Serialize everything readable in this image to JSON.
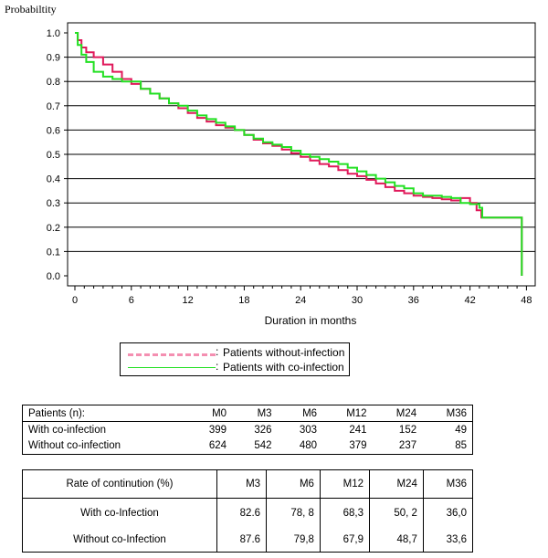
{
  "chart_data": {
    "type": "line",
    "step": true,
    "ylabel": "Probabiltity",
    "xlabel": "Duration in months",
    "xlim": [
      0,
      48
    ],
    "ylim": [
      0,
      1.0
    ],
    "xticks": [
      0,
      6,
      12,
      18,
      24,
      30,
      36,
      42,
      48
    ],
    "yticks": [
      0.0,
      0.1,
      0.2,
      0.3,
      0.4,
      0.5,
      0.6,
      0.7,
      0.8,
      0.9,
      1.0
    ],
    "grid": "horizontal",
    "legend_placement": "below-chart",
    "series": [
      {
        "name": "Patients without-infection",
        "color": "#e0185a",
        "points": [
          [
            0,
            1.0
          ],
          [
            0.3,
            0.97
          ],
          [
            0.7,
            0.94
          ],
          [
            1.2,
            0.92
          ],
          [
            2,
            0.9
          ],
          [
            3,
            0.87
          ],
          [
            4,
            0.84
          ],
          [
            5,
            0.81
          ],
          [
            6,
            0.79
          ],
          [
            7,
            0.77
          ],
          [
            8,
            0.75
          ],
          [
            9,
            0.73
          ],
          [
            10,
            0.71
          ],
          [
            11,
            0.69
          ],
          [
            12,
            0.67
          ],
          [
            13,
            0.65
          ],
          [
            14,
            0.635
          ],
          [
            15,
            0.62
          ],
          [
            16,
            0.61
          ],
          [
            17,
            0.6
          ],
          [
            18,
            0.58
          ],
          [
            19,
            0.56
          ],
          [
            20,
            0.545
          ],
          [
            21,
            0.535
          ],
          [
            22,
            0.52
          ],
          [
            23,
            0.505
          ],
          [
            24,
            0.49
          ],
          [
            25,
            0.475
          ],
          [
            26,
            0.46
          ],
          [
            27,
            0.45
          ],
          [
            28,
            0.435
          ],
          [
            29,
            0.42
          ],
          [
            30,
            0.41
          ],
          [
            31,
            0.395
          ],
          [
            32,
            0.38
          ],
          [
            33,
            0.365
          ],
          [
            34,
            0.35
          ],
          [
            35,
            0.34
          ],
          [
            36,
            0.33
          ],
          [
            37,
            0.325
          ],
          [
            38,
            0.32
          ],
          [
            39,
            0.315
          ],
          [
            40,
            0.31
          ],
          [
            41,
            0.32
          ],
          [
            42,
            0.3
          ],
          [
            42.7,
            0.27
          ],
          [
            43.2,
            0.24
          ],
          [
            47.5,
            0.24
          ],
          [
            47.5,
            0.0
          ]
        ]
      },
      {
        "name": "Patients with co-infection",
        "color": "#22e022",
        "points": [
          [
            0,
            1.0
          ],
          [
            0.3,
            0.95
          ],
          [
            0.7,
            0.91
          ],
          [
            1.2,
            0.88
          ],
          [
            2,
            0.84
          ],
          [
            3,
            0.82
          ],
          [
            4,
            0.81
          ],
          [
            5,
            0.8
          ],
          [
            6,
            0.8
          ],
          [
            7,
            0.77
          ],
          [
            8,
            0.75
          ],
          [
            9,
            0.73
          ],
          [
            10,
            0.71
          ],
          [
            11,
            0.7
          ],
          [
            12,
            0.68
          ],
          [
            13,
            0.66
          ],
          [
            14,
            0.645
          ],
          [
            15,
            0.63
          ],
          [
            16,
            0.615
          ],
          [
            17,
            0.6
          ],
          [
            18,
            0.58
          ],
          [
            19,
            0.565
          ],
          [
            20,
            0.55
          ],
          [
            21,
            0.54
          ],
          [
            22,
            0.53
          ],
          [
            23,
            0.515
          ],
          [
            24,
            0.5
          ],
          [
            25,
            0.49
          ],
          [
            26,
            0.48
          ],
          [
            27,
            0.47
          ],
          [
            28,
            0.46
          ],
          [
            29,
            0.445
          ],
          [
            30,
            0.43
          ],
          [
            31,
            0.415
          ],
          [
            32,
            0.4
          ],
          [
            33,
            0.385
          ],
          [
            34,
            0.37
          ],
          [
            35,
            0.36
          ],
          [
            36,
            0.34
          ],
          [
            37,
            0.33
          ],
          [
            38,
            0.33
          ],
          [
            39,
            0.325
          ],
          [
            40,
            0.32
          ],
          [
            41,
            0.3
          ],
          [
            42,
            0.295
          ],
          [
            43,
            0.28
          ],
          [
            43.3,
            0.24
          ],
          [
            47.5,
            0.24
          ],
          [
            47.5,
            0.0
          ]
        ]
      }
    ]
  },
  "legend": {
    "items": [
      {
        "label": "Patients without-infection",
        "color": "#f48fb1"
      },
      {
        "label": "Patients with co-infection",
        "color": "#22e022"
      }
    ]
  },
  "patients_table": {
    "header": [
      "Patients (n):",
      "M0",
      "M3",
      "M6",
      "M12",
      "M24",
      "M36"
    ],
    "rows": [
      [
        "With co-infection",
        "399",
        "326",
        "303",
        "241",
        "152",
        "49"
      ],
      [
        "Without co-infection",
        "624",
        "542",
        "480",
        "379",
        "237",
        "85"
      ]
    ]
  },
  "continuation_table": {
    "header": [
      "Rate of continution (%)",
      "M3",
      "M6",
      "M12",
      "M24",
      "M36"
    ],
    "rows": [
      [
        "With co-Infection",
        "82.6",
        "78, 8",
        "68,3",
        "50, 2",
        "36,0"
      ],
      [
        "Without co-Infection",
        "87.6",
        "79,8",
        "67,9",
        "48,7",
        "33,6"
      ]
    ]
  }
}
